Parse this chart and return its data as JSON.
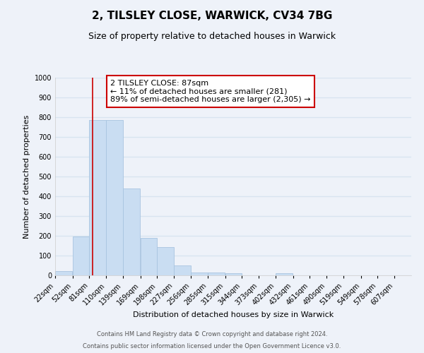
{
  "title": "2, TILSLEY CLOSE, WARWICK, CV34 7BG",
  "subtitle": "Size of property relative to detached houses in Warwick",
  "xlabel": "Distribution of detached houses by size in Warwick",
  "ylabel": "Number of detached properties",
  "bin_labels": [
    "22sqm",
    "52sqm",
    "81sqm",
    "110sqm",
    "139sqm",
    "169sqm",
    "198sqm",
    "227sqm",
    "256sqm",
    "285sqm",
    "315sqm",
    "344sqm",
    "373sqm",
    "402sqm",
    "432sqm",
    "461sqm",
    "490sqm",
    "519sqm",
    "549sqm",
    "578sqm",
    "607sqm"
  ],
  "bar_values": [
    20,
    195,
    785,
    785,
    440,
    190,
    143,
    50,
    15,
    13,
    10,
    0,
    0,
    10,
    0,
    0,
    0,
    0,
    0,
    0,
    0
  ],
  "bar_color": "#c9ddf2",
  "bar_edge_color": "#a8c4e0",
  "vline_x": 87,
  "bin_edges": [
    22,
    52,
    81,
    110,
    139,
    169,
    198,
    227,
    256,
    285,
    315,
    344,
    373,
    402,
    432,
    461,
    490,
    519,
    549,
    578,
    607
  ],
  "bin_width": 29,
  "ylim": [
    0,
    1000
  ],
  "yticks": [
    0,
    100,
    200,
    300,
    400,
    500,
    600,
    700,
    800,
    900,
    1000
  ],
  "annotation_box_text": "2 TILSLEY CLOSE: 87sqm\n← 11% of detached houses are smaller (281)\n89% of semi-detached houses are larger (2,305) →",
  "annotation_box_color": "#ffffff",
  "annotation_box_edge_color": "#cc0000",
  "vline_color": "#cc0000",
  "footer_line1": "Contains HM Land Registry data © Crown copyright and database right 2024.",
  "footer_line2": "Contains public sector information licensed under the Open Government Licence v3.0.",
  "background_color": "#eef2f9",
  "grid_color": "#d8e4f0",
  "title_fontsize": 11,
  "subtitle_fontsize": 9,
  "axis_label_fontsize": 8,
  "tick_fontsize": 7,
  "footer_fontsize": 6,
  "annotation_fontsize": 8
}
